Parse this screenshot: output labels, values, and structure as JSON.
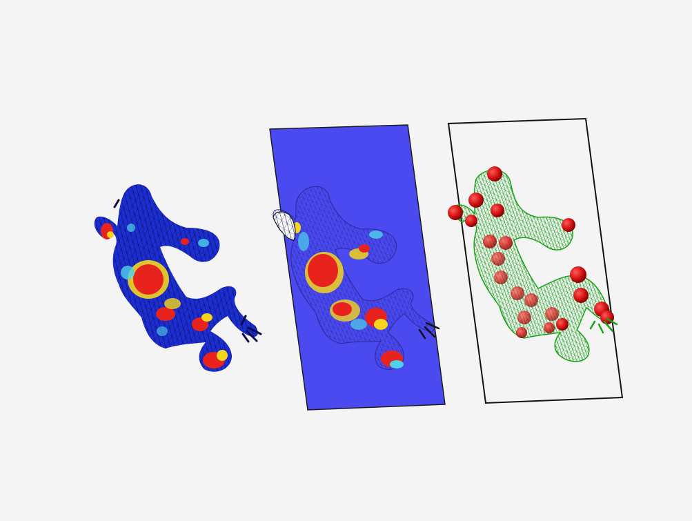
{
  "scene": {
    "background_color": "#f4f4f4",
    "panels": [
      {
        "name": "heatmap-mesh",
        "description_color": "mesh colored blue to red",
        "colors": {
          "base": "#1c2fd6",
          "hot": "#e8231e",
          "warm": "#f5d51d",
          "cool": "#4fd2e8",
          "wire": "#111111"
        }
      },
      {
        "name": "projected-heatmap-plane",
        "colors": {
          "plane": "#4a4af0",
          "hot": "#e8231e",
          "warm": "#f5d51d",
          "cool": "#4fd2e8",
          "wire": "#1a1a80"
        }
      },
      {
        "name": "keypoint-wireframe",
        "colors": {
          "wire": "#19a319",
          "sphere": "#d11010",
          "frame": "#111111"
        }
      }
    ]
  }
}
